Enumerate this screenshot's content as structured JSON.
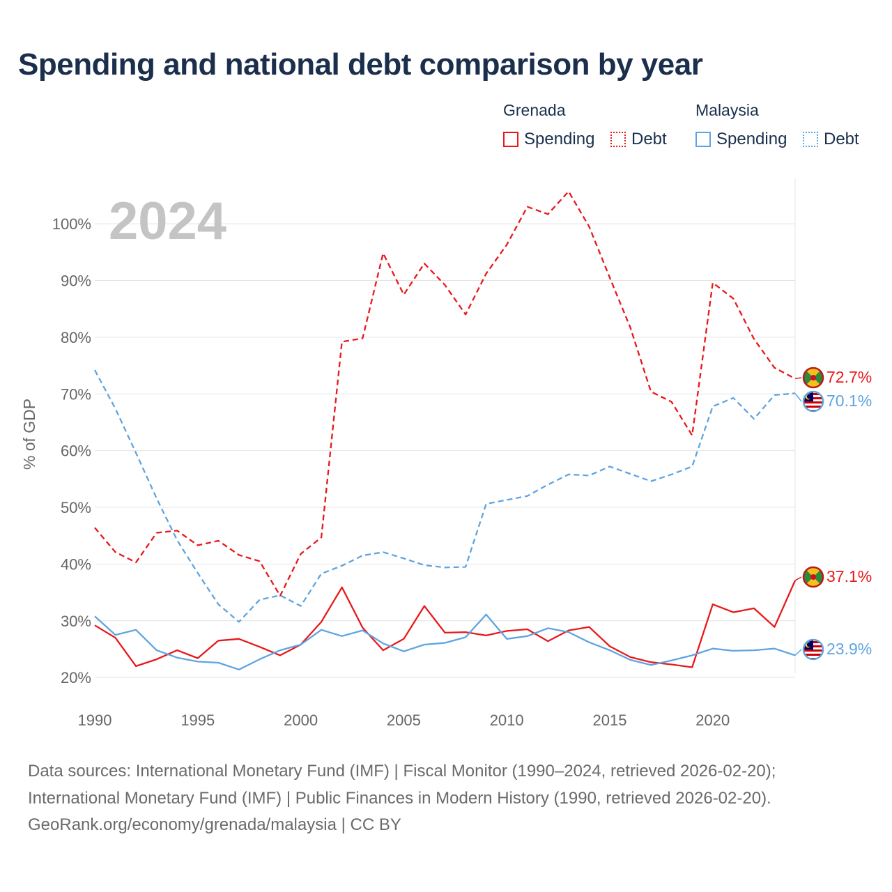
{
  "title": "Spending and national debt comparison by year",
  "legend": {
    "groups": [
      {
        "name": "Grenada",
        "color": "#e8181b",
        "items": [
          {
            "label": "Spending",
            "style": "solid"
          },
          {
            "label": "Debt",
            "style": "dotted"
          }
        ]
      },
      {
        "name": "Malaysia",
        "color": "#5fa4e0",
        "items": [
          {
            "label": "Spending",
            "style": "solid"
          },
          {
            "label": "Debt",
            "style": "dotted"
          }
        ]
      }
    ]
  },
  "chart_data": {
    "type": "line",
    "year_label": "2024",
    "ylabel": "% of GDP",
    "xlabel": "",
    "xlim": [
      1990,
      2024
    ],
    "ylim": [
      14,
      108
    ],
    "x_ticks": [
      1990,
      1995,
      2000,
      2005,
      2010,
      2015,
      2020
    ],
    "x_tick_labels": [
      "1990",
      "1995",
      "2000",
      "2005",
      "2010",
      "2015",
      "2020"
    ],
    "y_ticks": [
      20,
      30,
      40,
      50,
      60,
      70,
      80,
      90,
      100
    ],
    "y_tick_labels": [
      "20%",
      "30%",
      "40%",
      "50%",
      "60%",
      "70%",
      "80%",
      "90%",
      "100%"
    ],
    "grid": true,
    "x": [
      1990,
      1991,
      1992,
      1993,
      1994,
      1995,
      1996,
      1997,
      1998,
      1999,
      2000,
      2001,
      2002,
      2003,
      2004,
      2005,
      2006,
      2007,
      2008,
      2009,
      2010,
      2011,
      2012,
      2013,
      2014,
      2015,
      2016,
      2017,
      2018,
      2019,
      2020,
      2021,
      2022,
      2023,
      2024
    ],
    "series": [
      {
        "name": "Grenada Spending",
        "country": "Grenada",
        "metric": "Spending",
        "color": "#e8181b",
        "dash": "solid",
        "values": [
          29.2,
          27.0,
          22.0,
          23.2,
          24.8,
          23.4,
          26.5,
          26.8,
          25.4,
          23.9,
          25.8,
          29.8,
          35.9,
          28.8,
          24.8,
          26.8,
          32.6,
          27.9,
          28.0,
          27.4,
          28.2,
          28.5,
          26.4,
          28.3,
          28.9,
          25.5,
          23.6,
          22.7,
          22.3,
          21.8,
          32.9,
          31.5,
          32.2,
          28.9,
          37.1
        ],
        "end_label": "37.1%"
      },
      {
        "name": "Grenada Debt",
        "country": "Grenada",
        "metric": "Debt",
        "color": "#e8181b",
        "dash": "dashed",
        "values": [
          46.4,
          42.1,
          40.3,
          45.5,
          45.9,
          43.3,
          44.1,
          41.6,
          40.5,
          34.4,
          41.8,
          44.7,
          79.2,
          79.8,
          94.8,
          87.5,
          93.0,
          89.2,
          84.0,
          91.2,
          96.3,
          103.0,
          101.7,
          105.7,
          99.5,
          90.5,
          81.7,
          70.4,
          68.6,
          62.7,
          89.6,
          86.8,
          79.7,
          74.6,
          72.7
        ],
        "end_label": "72.7%"
      },
      {
        "name": "Malaysia Spending",
        "country": "Malaysia",
        "metric": "Spending",
        "color": "#5fa4e0",
        "dash": "solid",
        "values": [
          30.8,
          27.5,
          28.4,
          24.8,
          23.5,
          22.8,
          22.6,
          21.4,
          23.2,
          24.8,
          25.8,
          28.4,
          27.3,
          28.3,
          26.0,
          24.6,
          25.8,
          26.1,
          27.1,
          31.1,
          26.8,
          27.3,
          28.7,
          28.0,
          26.2,
          24.8,
          23.1,
          22.2,
          23.0,
          23.9,
          25.1,
          24.7,
          24.8,
          25.1,
          23.9
        ],
        "end_label": "23.9%"
      },
      {
        "name": "Malaysia Debt",
        "country": "Malaysia",
        "metric": "Debt",
        "color": "#5fa4e0",
        "dash": "dashed",
        "values": [
          74.2,
          67.4,
          59.6,
          51.6,
          44.2,
          38.4,
          32.9,
          29.8,
          33.7,
          34.5,
          32.6,
          38.3,
          39.7,
          41.5,
          42.1,
          41.0,
          39.8,
          39.4,
          39.5,
          50.6,
          51.3,
          52.0,
          54.0,
          55.8,
          55.6,
          57.2,
          55.9,
          54.6,
          55.8,
          57.2,
          67.8,
          69.3,
          65.6,
          69.8,
          70.1
        ],
        "end_label": "70.1%"
      }
    ]
  },
  "footer": {
    "line1": "Data sources: International Monetary Fund (IMF) | Fiscal Monitor (1990–2024, retrieved 2026-02-20);",
    "line2": "International Monetary Fund (IMF) | Public Finances in Modern History (1990, retrieved 2026-02-20).",
    "line3": "GeoRank.org/economy/grenada/malaysia | CC BY"
  }
}
